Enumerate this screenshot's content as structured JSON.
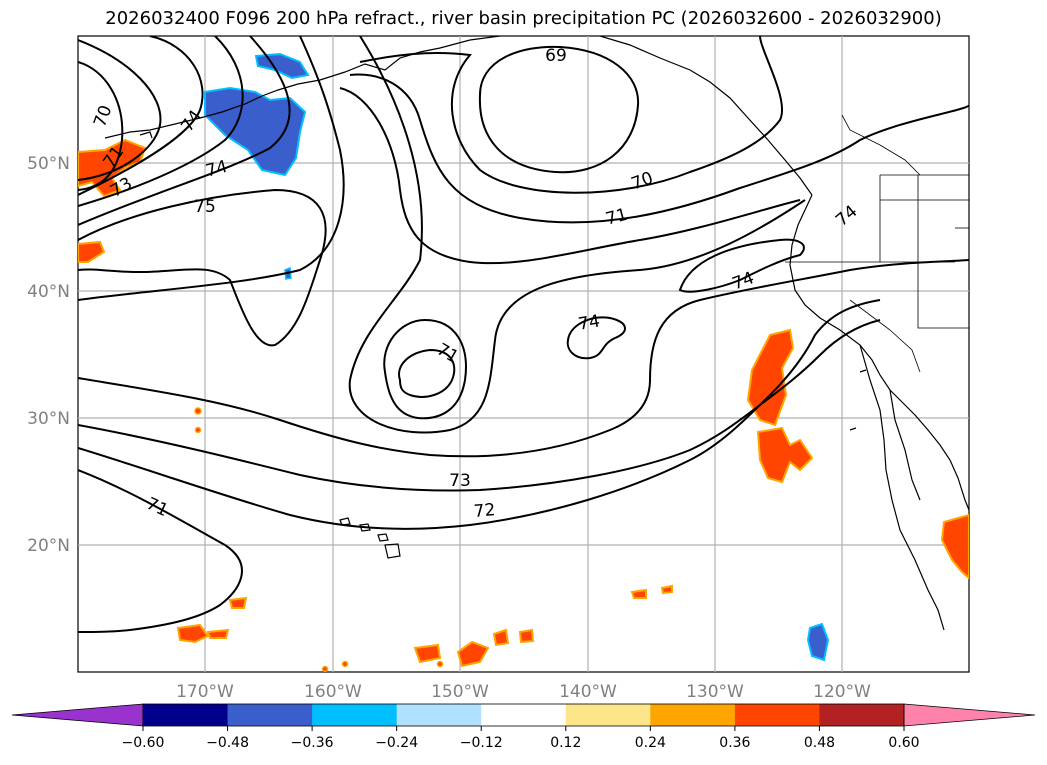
{
  "title": "2026032400 F096 200 hPa refract., river basin precipitation PC (2026032600 - 2026032900)",
  "lat_labels": [
    "50°N",
    "40°N",
    "30°N",
    "20°N"
  ],
  "lon_labels": [
    "170°W",
    "160°W",
    "150°W",
    "140°W",
    "130°W",
    "120°W"
  ],
  "contour_labels": [
    "69",
    "70",
    "70",
    "71",
    "71",
    "71",
    "71",
    "72",
    "73",
    "73",
    "74",
    "74",
    "74",
    "74",
    "75",
    "74"
  ],
  "colorbar": {
    "ticks": [
      "−0.60",
      "−0.48",
      "−0.36",
      "−0.24",
      "−0.12",
      "0.12",
      "0.24",
      "0.36",
      "0.48",
      "0.60"
    ],
    "colors": [
      "#9a32cd",
      "#00008b",
      "#3a5fcd",
      "#00bfff",
      "#b0e2ff",
      "#ffffff",
      "#fde68a",
      "#ffa500",
      "#ff4500",
      "#b22222",
      "#ff82ab"
    ]
  },
  "colors": {
    "negative_precip": "#3a5fcd",
    "negative_light": "#00bfff",
    "positive_precip": "#ff4500",
    "positive_edge": "#ffa500"
  }
}
